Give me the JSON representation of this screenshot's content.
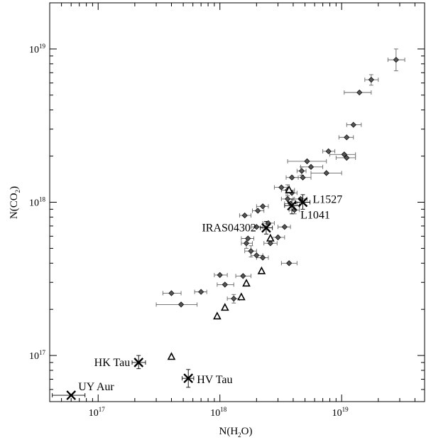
{
  "chart_data": {
    "type": "scatter",
    "title": "",
    "xlabel": "N(H2O)",
    "ylabel": "N(CO2)",
    "xscale": "log",
    "yscale": "log",
    "xlim": [
      4e+16,
      4.8e+19
    ],
    "ylim": [
      5e+16,
      2e+19
    ],
    "grid": false,
    "x_ticks": [
      {
        "mantissa": "10",
        "exp": "17",
        "value": 1e+17
      },
      {
        "mantissa": "10",
        "exp": "18",
        "value": 1e+18
      },
      {
        "mantissa": "10",
        "exp": "19",
        "value": 1e+19
      }
    ],
    "y_ticks": [
      {
        "mantissa": "10",
        "exp": "17",
        "value": 1e+17
      },
      {
        "mantissa": "10",
        "exp": "18",
        "value": 1e+18
      },
      {
        "mantissa": "10",
        "exp": "19",
        "value": 1e+19
      }
    ],
    "series": [
      {
        "marker": "diamond",
        "color": "#555555",
        "points": [
          {
            "x": 2.8e+19,
            "y": 8.5e+18,
            "xerr": [
              2.4e+19,
              3.3e+19
            ],
            "yerr": [
              7.2e+18,
              1e+19
            ]
          },
          {
            "x": 1.75e+19,
            "y": 6.3e+18,
            "xerr": [
              1.55e+19,
              2e+19
            ],
            "yerr": [
              5.8e+18,
              6.8e+18
            ]
          },
          {
            "x": 1.4e+19,
            "y": 5.2e+18,
            "xerr": [
              1.05e+19,
              1.75e+19
            ]
          },
          {
            "x": 1.25e+19,
            "y": 3.2e+18,
            "xerr": [
              1.1e+19,
              1.45e+19
            ]
          },
          {
            "x": 1.1e+19,
            "y": 2.65e+18,
            "xerr": [
              9.5e+18,
              1.25e+19
            ]
          },
          {
            "x": 7.8e+18,
            "y": 2.15e+18,
            "xerr": [
              7e+18,
              8.8e+18
            ]
          },
          {
            "x": 1.05e+19,
            "y": 2.05e+18,
            "xerr": [
              8e+18,
              1.3e+19
            ]
          },
          {
            "x": 1.1e+19,
            "y": 1.95e+18,
            "xerr": [
              9e+18,
              1.3e+19
            ]
          },
          {
            "x": 5.2e+18,
            "y": 1.85e+18,
            "xerr": [
              3.6e+18,
              7.5e+18
            ]
          },
          {
            "x": 5.6e+18,
            "y": 1.7e+18,
            "xerr": [
              4.6e+18,
              7e+18
            ]
          },
          {
            "x": 4.7e+18,
            "y": 1.6e+18,
            "xerr": [
              4.3e+18,
              5.1e+18
            ],
            "yerr": [
              1.5e+18,
              1.7e+18
            ]
          },
          {
            "x": 7.5e+18,
            "y": 1.55e+18,
            "xerr": [
              5.6e+18,
              1e+19
            ]
          },
          {
            "x": 3.9e+18,
            "y": 1.45e+18,
            "xerr": [
              3.5e+18,
              4.4e+18
            ]
          },
          {
            "x": 4.8e+18,
            "y": 1.45e+18,
            "xerr": [
              4e+18,
              5.6e+18
            ]
          },
          {
            "x": 3.2e+18,
            "y": 1.25e+18,
            "xerr": [
              2.8e+18,
              3.7e+18
            ]
          },
          {
            "x": 3.6e+18,
            "y": 1.2e+18,
            "xerr": [
              3.2e+18,
              4.1e+18
            ],
            "yerr": [
              1.1e+18,
              1.3e+18
            ]
          },
          {
            "x": 3.9e+18,
            "y": 1.15e+18,
            "xerr": [
              3.5e+18,
              4.3e+18
            ]
          },
          {
            "x": 3.6e+18,
            "y": 1.05e+18,
            "xerr": [
              3.2e+18,
              4e+18
            ]
          },
          {
            "x": 4.6e+18,
            "y": 1.05e+18,
            "xerr": [
              4.1e+18,
              5.2e+18
            ]
          },
          {
            "x": 3.8e+18,
            "y": 9.8e+17,
            "xerr": [
              3.4e+18,
              4.3e+18
            ]
          },
          {
            "x": 4.1e+18,
            "y": 8.9e+17,
            "xerr": [
              3.7e+18,
              4.5e+18
            ],
            "yerr": [
              8.4e+17,
              9.5e+17
            ]
          },
          {
            "x": 2.25e+18,
            "y": 9.4e+17,
            "xerr": [
              2e+18,
              2.5e+18
            ]
          },
          {
            "x": 2.05e+18,
            "y": 8.8e+17,
            "xerr": [
              1.85e+18,
              2.3e+18
            ]
          },
          {
            "x": 1.6e+18,
            "y": 8.2e+17,
            "xerr": [
              1.45e+18,
              1.8e+18
            ]
          },
          {
            "x": 2.5e+18,
            "y": 7.3e+17,
            "xerr": [
              2.25e+18,
              2.8e+18
            ]
          },
          {
            "x": 2e+18,
            "y": 6.9e+17,
            "xerr": [
              1.8e+18,
              2.25e+18
            ]
          },
          {
            "x": 3.4e+18,
            "y": 6.9e+17,
            "xerr": [
              3e+18,
              3.8e+18
            ]
          },
          {
            "x": 1.7e+18,
            "y": 5.8e+17,
            "xerr": [
              1.5e+18,
              1.9e+18
            ]
          },
          {
            "x": 3e+18,
            "y": 5.9e+17,
            "xerr": [
              2.6e+18,
              3.4e+18
            ]
          },
          {
            "x": 1.65e+18,
            "y": 5.4e+17,
            "xerr": [
              1.5e+18,
              1.85e+18
            ],
            "yerr": [
              5e+17,
              5.8e+17
            ]
          },
          {
            "x": 2.6e+18,
            "y": 5.4e+17,
            "xerr": [
              2.3e+18,
              2.95e+18
            ]
          },
          {
            "x": 1.8e+18,
            "y": 4.8e+17,
            "xerr": [
              1.6e+18,
              2e+18
            ],
            "yerr": [
              4.4e+17,
              5.2e+17
            ]
          },
          {
            "x": 2e+18,
            "y": 4.5e+17,
            "xerr": [
              1.8e+18,
              2.25e+18
            ]
          },
          {
            "x": 2.25e+18,
            "y": 4.35e+17,
            "xerr": [
              2e+18,
              2.5e+18
            ]
          },
          {
            "x": 3.7e+18,
            "y": 4e+17,
            "xerr": [
              3.2e+18,
              4.3e+18
            ]
          },
          {
            "x": 1e+18,
            "y": 3.35e+17,
            "xerr": [
              9e+17,
              1.15e+18
            ]
          },
          {
            "x": 1.55e+18,
            "y": 3.3e+17,
            "xerr": [
              1.35e+18,
              1.8e+18
            ]
          },
          {
            "x": 1.1e+18,
            "y": 2.9e+17,
            "xerr": [
              9.5e+17,
              1.3e+18
            ]
          },
          {
            "x": 4e+17,
            "y": 2.55e+17,
            "xerr": [
              3.4e+17,
              4.8e+17
            ]
          },
          {
            "x": 7e+17,
            "y": 2.6e+17,
            "xerr": [
              6.2e+17,
              7.8e+17
            ]
          },
          {
            "x": 1.3e+18,
            "y": 2.35e+17,
            "xerr": [
              1.15e+18,
              1.45e+18
            ],
            "yerr": [
              2.2e+17,
              2.5e+17
            ]
          },
          {
            "x": 4.8e+17,
            "y": 2.15e+17,
            "xerr": [
              3e+17,
              6.5e+17
            ]
          }
        ]
      },
      {
        "marker": "triangle",
        "color": "#000000",
        "points": [
          {
            "x": 2.2e+18,
            "y": 3.55e+17
          },
          {
            "x": 1.65e+18,
            "y": 2.95e+17
          },
          {
            "x": 1.5e+18,
            "y": 2.4e+17
          },
          {
            "x": 1.1e+18,
            "y": 2.05e+17
          },
          {
            "x": 9.5e+17,
            "y": 1.8e+17
          },
          {
            "x": 4e+17,
            "y": 9.8e+16
          },
          {
            "x": 2.6e+18,
            "y": 5.8e+17
          },
          {
            "x": 3.7e+18,
            "y": 1.2e+18
          }
        ]
      },
      {
        "marker": "cross",
        "color": "#000000",
        "points": [
          {
            "label": "L1527",
            "x": 4.8e+18,
            "y": 1e+18,
            "xerr": [
              4.2e+18,
              5.5e+18
            ],
            "yerr": [
              9e+17,
              1.12e+18
            ]
          },
          {
            "label": "L1041",
            "x": 3.9e+18,
            "y": 9.5e+17,
            "xerr": [
              3.4e+18,
              4.5e+18
            ],
            "yerr": [
              8.4e+17,
              1.05e+18
            ]
          },
          {
            "label": "IRAS04302",
            "x": 2.4e+18,
            "y": 6.8e+17,
            "xerr": [
              2.15e+18,
              2.7e+18
            ],
            "yerr": [
              6.2e+17,
              7.5e+17
            ]
          },
          {
            "label": "HK Tau",
            "x": 2.15e+17,
            "y": 9e+16,
            "xerr": [
              1.9e+17,
              2.45e+17
            ],
            "yerr": [
              8.2e+16,
              1e+17
            ]
          },
          {
            "label": "HV Tau",
            "x": 5.5e+17,
            "y": 7.1e+16,
            "xerr": [
              4.9e+17,
              6.1e+17
            ],
            "yerr": [
              6.2e+16,
              8.1e+16
            ]
          },
          {
            "label": "UY Aur",
            "x": 6e+16,
            "y": 5.5e+16,
            "xerr": [
              4.2e+16,
              7.8e+16
            ]
          }
        ]
      }
    ]
  }
}
